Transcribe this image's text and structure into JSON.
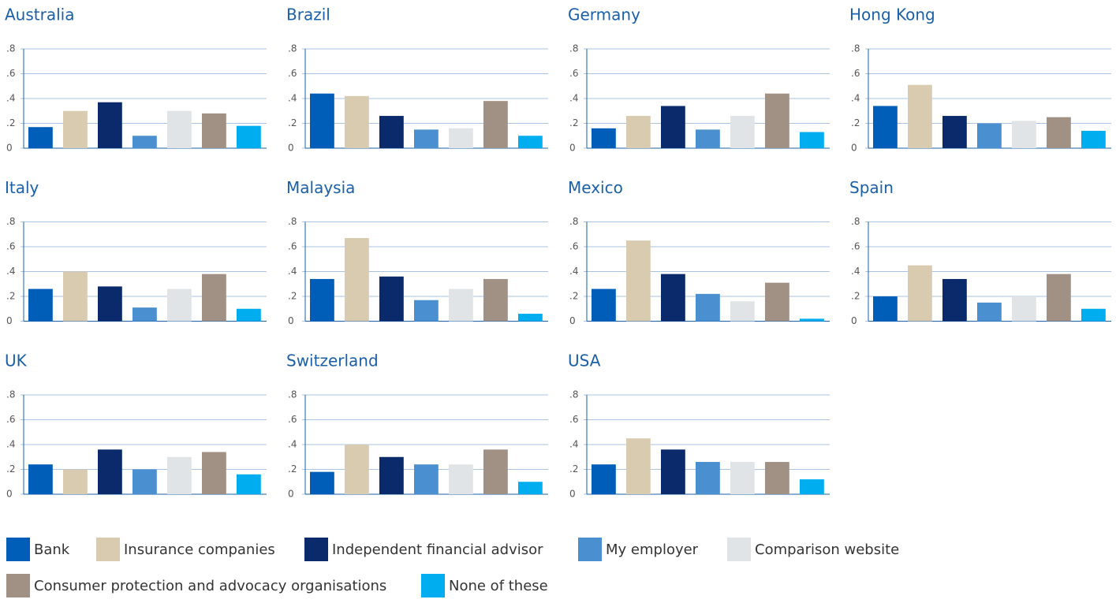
{
  "chart_data": [
    {
      "type": "bar",
      "title": "Australia",
      "values": [
        0.17,
        0.3,
        0.37,
        0.1,
        0.3,
        0.28,
        0.18
      ],
      "ylim": [
        0,
        0.8
      ],
      "yticks": [
        0,
        {
          "value": 0.2,
          "label": ".2"
        },
        {
          "value": 0.4,
          "label": ".4"
        },
        {
          "value": 0.6,
          "label": ".6"
        },
        {
          "value": 0.8,
          "label": ".8"
        }
      ],
      "grid": true
    },
    {
      "type": "bar",
      "title": "Brazil",
      "values": [
        0.44,
        0.42,
        0.26,
        0.15,
        0.16,
        0.38,
        0.1
      ],
      "ylim": [
        0,
        0.8
      ],
      "yticks": [
        0,
        {
          "value": 0.2,
          "label": ".2"
        },
        {
          "value": 0.4,
          "label": ".4"
        },
        {
          "value": 0.6,
          "label": ".6"
        },
        {
          "value": 0.8,
          "label": ".8"
        }
      ],
      "grid": true
    },
    {
      "type": "bar",
      "title": "Germany",
      "values": [
        0.16,
        0.26,
        0.34,
        0.15,
        0.26,
        0.44,
        0.13
      ],
      "ylim": [
        0,
        0.8
      ],
      "yticks": [
        0,
        {
          "value": 0.2,
          "label": ".2"
        },
        {
          "value": 0.4,
          "label": ".4"
        },
        {
          "value": 0.6,
          "label": ".6"
        },
        {
          "value": 0.8,
          "label": ".8"
        }
      ],
      "grid": true
    },
    {
      "type": "bar",
      "title": "Hong Kong",
      "values": [
        0.34,
        0.51,
        0.26,
        0.2,
        0.22,
        0.25,
        0.14
      ],
      "ylim": [
        0,
        0.8
      ],
      "yticks": [
        0,
        {
          "value": 0.2,
          "label": ".2"
        },
        {
          "value": 0.4,
          "label": ".4"
        },
        {
          "value": 0.6,
          "label": ".6"
        },
        {
          "value": 0.8,
          "label": ".8"
        }
      ],
      "grid": true
    },
    {
      "type": "bar",
      "title": "Italy",
      "values": [
        0.26,
        0.4,
        0.28,
        0.11,
        0.26,
        0.38,
        0.1
      ],
      "ylim": [
        0,
        0.8
      ],
      "yticks": [
        0,
        {
          "value": 0.2,
          "label": ".2"
        },
        {
          "value": 0.4,
          "label": ".4"
        },
        {
          "value": 0.6,
          "label": ".6"
        },
        {
          "value": 0.8,
          "label": ".8"
        }
      ],
      "grid": true
    },
    {
      "type": "bar",
      "title": "Malaysia",
      "values": [
        0.34,
        0.67,
        0.36,
        0.17,
        0.26,
        0.34,
        0.06
      ],
      "ylim": [
        0,
        0.8
      ],
      "yticks": [
        0,
        {
          "value": 0.2,
          "label": ".2"
        },
        {
          "value": 0.4,
          "label": ".4"
        },
        {
          "value": 0.6,
          "label": ".6"
        },
        {
          "value": 0.8,
          "label": ".8"
        }
      ],
      "grid": true
    },
    {
      "type": "bar",
      "title": "Mexico",
      "values": [
        0.26,
        0.65,
        0.38,
        0.22,
        0.16,
        0.31,
        0.02
      ],
      "ylim": [
        0,
        0.8
      ],
      "yticks": [
        0,
        {
          "value": 0.2,
          "label": ".2"
        },
        {
          "value": 0.4,
          "label": ".4"
        },
        {
          "value": 0.6,
          "label": ".6"
        },
        {
          "value": 0.8,
          "label": ".8"
        }
      ],
      "grid": true
    },
    {
      "type": "bar",
      "title": "Spain",
      "values": [
        0.2,
        0.45,
        0.34,
        0.15,
        0.2,
        0.38,
        0.1
      ],
      "ylim": [
        0,
        0.8
      ],
      "yticks": [
        0,
        {
          "value": 0.2,
          "label": ".2"
        },
        {
          "value": 0.4,
          "label": ".4"
        },
        {
          "value": 0.6,
          "label": ".6"
        },
        {
          "value": 0.8,
          "label": ".8"
        }
      ],
      "grid": true
    },
    {
      "type": "bar",
      "title": "UK",
      "values": [
        0.24,
        0.2,
        0.36,
        0.2,
        0.3,
        0.34,
        0.16
      ],
      "ylim": [
        0,
        0.8
      ],
      "yticks": [
        0,
        {
          "value": 0.2,
          "label": ".2"
        },
        {
          "value": 0.4,
          "label": ".4"
        },
        {
          "value": 0.6,
          "label": ".6"
        },
        {
          "value": 0.8,
          "label": ".8"
        }
      ],
      "grid": true
    },
    {
      "type": "bar",
      "title": "Switzerland",
      "values": [
        0.18,
        0.4,
        0.3,
        0.24,
        0.24,
        0.36,
        0.1
      ],
      "ylim": [
        0,
        0.8
      ],
      "yticks": [
        0,
        {
          "value": 0.2,
          "label": ".2"
        },
        {
          "value": 0.4,
          "label": ".4"
        },
        {
          "value": 0.6,
          "label": ".6"
        },
        {
          "value": 0.8,
          "label": ".8"
        }
      ],
      "grid": true
    },
    {
      "type": "bar",
      "title": "USA",
      "values": [
        0.24,
        0.45,
        0.36,
        0.26,
        0.26,
        0.26,
        0.12
      ],
      "ylim": [
        0,
        0.8
      ],
      "yticks": [
        0,
        {
          "value": 0.2,
          "label": ".2"
        },
        {
          "value": 0.4,
          "label": ".4"
        },
        {
          "value": 0.6,
          "label": ".6"
        },
        {
          "value": 0.8,
          "label": ".8"
        }
      ],
      "grid": true
    }
  ],
  "legend": {
    "items": [
      {
        "name": "Bank",
        "color": "#005eb8"
      },
      {
        "name": "Insurance companies",
        "color": "#d9cbb0"
      },
      {
        "name": "Independent financial advisor",
        "color": "#0b2a6c"
      },
      {
        "name": "My employer",
        "color": "#4a8fd0"
      },
      {
        "name": "Comparison website",
        "color": "#e0e4e6"
      },
      {
        "name": "Consumer protection and advocacy organisations",
        "color": "#a09184"
      },
      {
        "name": "None of these",
        "color": "#00aeef"
      }
    ]
  }
}
